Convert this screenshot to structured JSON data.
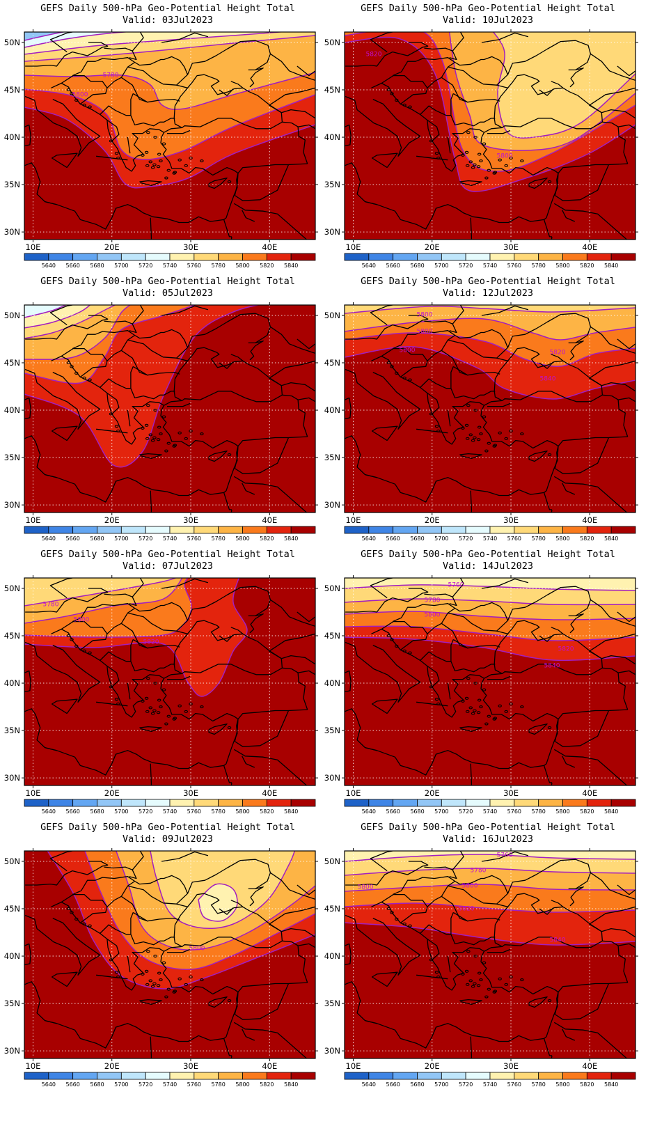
{
  "map": {
    "lat_labels": [
      "50N",
      "45N",
      "40N",
      "35N",
      "30N"
    ],
    "lon_labels": [
      "10E",
      "20E",
      "30E",
      "40E"
    ],
    "colorbar": {
      "labels": [
        "5640",
        "5660",
        "5680",
        "5700",
        "5720",
        "5740",
        "5760",
        "5780",
        "5800",
        "5820",
        "5840"
      ],
      "colors": [
        "#1e62c8",
        "#3f85e6",
        "#63a6f2",
        "#92c6f6",
        "#bfe6fb",
        "#e5fbfd",
        "#fff2b0",
        "#ffd978",
        "#fdb445",
        "#fa7a1c",
        "#e3240d",
        "#a80000"
      ]
    }
  },
  "panels": [
    {
      "title": "GEFS Daily 500-hPa Geo-Potential Height Total",
      "valid": "Valid: 03Jul2023",
      "labels": [
        "5780",
        "5800"
      ]
    },
    {
      "title": "GEFS Daily 500-hPa Geo-Potential Height Total",
      "valid": "Valid: 10Jul2023",
      "labels": [
        "5820",
        "5800"
      ]
    },
    {
      "title": "GEFS Daily 500-hPa Geo-Potential Height Total",
      "valid": "Valid: 05Jul2023",
      "labels": []
    },
    {
      "title": "GEFS Daily 500-hPa Geo-Potential Height Total",
      "valid": "Valid: 12Jul2023",
      "labels": [
        "5800",
        "5800",
        "5800",
        "5820",
        "5840"
      ]
    },
    {
      "title": "GEFS Daily 500-hPa Geo-Potential Height Total",
      "valid": "Valid: 07Jul2023",
      "labels": [
        "5780",
        "5800",
        "5820"
      ]
    },
    {
      "title": "GEFS Daily 500-hPa Geo-Potential Height Total",
      "valid": "Valid: 14Jul2023",
      "labels": [
        "5760",
        "5780",
        "5800",
        "5820",
        "5840"
      ]
    },
    {
      "title": "GEFS Daily 500-hPa Geo-Potential Height Total",
      "valid": "Valid: 09Jul2023",
      "labels": [
        "5800"
      ]
    },
    {
      "title": "GEFS Daily 500-hPa Geo-Potential Height Total",
      "valid": "Valid: 16Jul2023",
      "labels": [
        "5760",
        "5780",
        "5800",
        "5800",
        "5820",
        "5840"
      ]
    }
  ]
}
